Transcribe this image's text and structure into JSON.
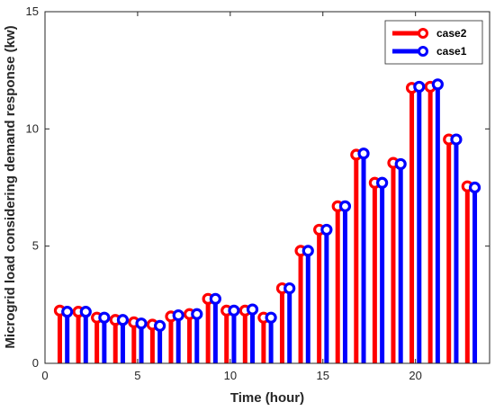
{
  "chart_data": {
    "type": "stem",
    "xlabel": "Time (hour)",
    "ylabel": "Microgrid load considering demand response (kw)",
    "xlim": [
      0,
      24
    ],
    "ylim": [
      0,
      15
    ],
    "xticks": [
      "0",
      "5",
      "10",
      "15",
      "20"
    ],
    "yticks": [
      "0",
      "5",
      "10",
      "15"
    ],
    "grid": false,
    "legend_position": "top-right",
    "x": [
      1,
      2,
      3,
      4,
      5,
      6,
      7,
      8,
      9,
      10,
      11,
      12,
      13,
      14,
      15,
      16,
      17,
      18,
      19,
      20,
      21,
      22,
      23
    ],
    "series": [
      {
        "name": "case2",
        "color": "#ff0000",
        "values": [
          2.25,
          2.2,
          1.95,
          1.85,
          1.75,
          1.65,
          2.0,
          2.1,
          2.75,
          2.25,
          2.25,
          1.95,
          3.2,
          4.8,
          5.7,
          6.7,
          8.9,
          7.7,
          8.55,
          11.75,
          11.8,
          9.55,
          7.55
        ]
      },
      {
        "name": "case1",
        "color": "#0000ff",
        "values": [
          2.2,
          2.2,
          1.95,
          1.85,
          1.7,
          1.6,
          2.05,
          2.1,
          2.75,
          2.25,
          2.3,
          1.95,
          3.2,
          4.8,
          5.7,
          6.7,
          8.95,
          7.7,
          8.5,
          11.8,
          11.9,
          9.55,
          7.5
        ]
      }
    ]
  }
}
